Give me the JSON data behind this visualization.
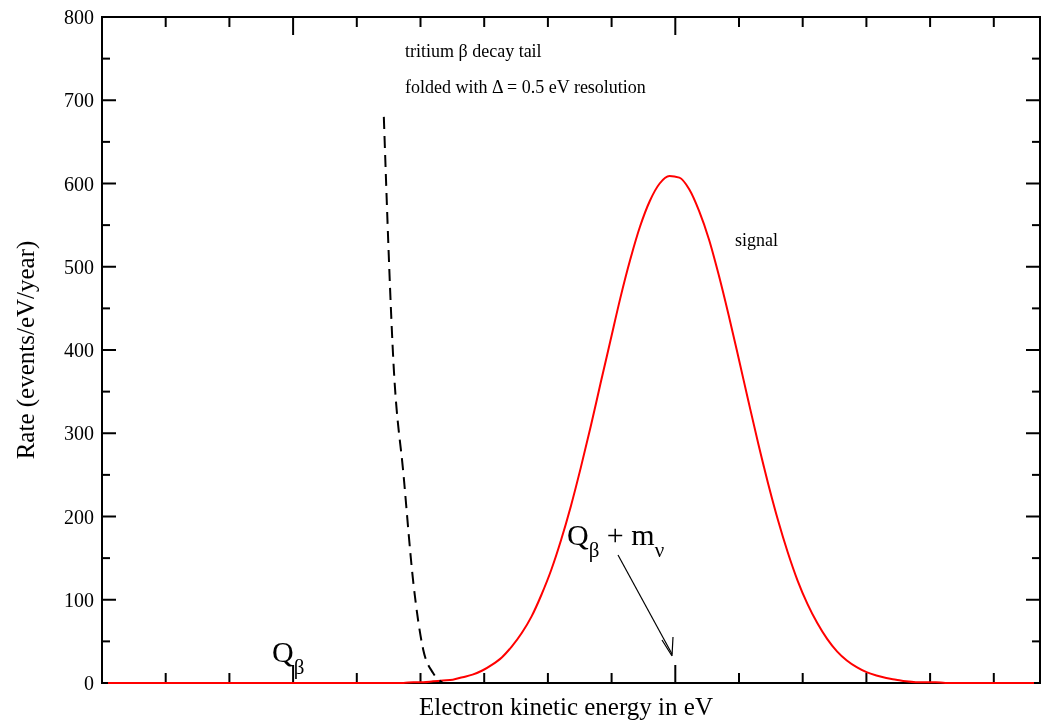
{
  "chart_data": {
    "type": "line",
    "xlabel": "Electron kinetic energy in eV",
    "ylabel": "Rate (events/eV/year)",
    "categories": [
      null,
      null,
      null,
      null,
      null,
      null,
      null,
      null,
      null,
      null,
      null,
      null,
      null,
      null,
      null,
      null,
      null,
      null,
      null,
      null,
      null,
      null,
      null,
      null,
      null,
      null,
      null,
      null,
      null,
      null,
      null,
      null,
      null,
      null,
      null,
      null,
      null,
      null,
      null,
      null,
      null,
      null,
      null,
      null,
      null,
      null,
      null,
      null,
      null,
      null,
      null,
      null,
      null,
      null,
      null,
      null,
      null,
      null,
      null,
      null,
      null,
      null,
      null,
      null,
      null,
      null,
      null,
      null,
      null,
      null,
      null,
      null,
      null,
      null,
      null,
      null,
      null,
      null,
      null,
      null,
      null,
      null,
      null,
      null,
      null,
      null,
      null,
      null,
      null,
      null,
      null,
      null,
      null,
      null,
      null
    ],
    "series": [
      {
        "name": "signal",
        "color": "#ff0000",
        "line_style": "solid",
        "values": [
          0,
          0,
          0,
          0,
          0,
          0,
          0,
          0,
          0,
          0,
          0,
          0,
          0,
          0,
          0,
          0,
          0,
          0,
          0,
          0,
          0,
          0,
          0,
          0,
          0,
          0,
          0,
          0,
          0,
          0,
          0,
          1,
          1,
          2,
          3,
          4,
          7,
          10,
          15,
          22,
          31,
          44,
          60,
          80,
          106,
          136,
          172,
          213,
          259,
          308,
          360,
          411,
          462,
          508,
          548,
          579,
          600,
          609,
          607,
          593,
          567,
          533,
          490,
          442,
          391,
          339,
          288,
          240,
          196,
          157,
          123,
          95,
          72,
          53,
          38,
          27,
          19,
          13,
          9,
          6,
          4,
          2,
          1,
          1,
          1,
          0,
          0,
          0,
          0,
          0,
          0,
          0,
          0,
          0,
          0
        ]
      },
      {
        "color": "#000000",
        "line_style": "dashed",
        "values": [
          null,
          null,
          null,
          null,
          null,
          null,
          null,
          null,
          null,
          null,
          null,
          null,
          null,
          null,
          null,
          null,
          null,
          null,
          null,
          null,
          null,
          null,
          null,
          null,
          null,
          null,
          null,
          null,
          680,
          380,
          250,
          120,
          40,
          12,
          0,
          null,
          null,
          null,
          null,
          null,
          null,
          null,
          null,
          null,
          null,
          null,
          null,
          null,
          null,
          null,
          null,
          null,
          null,
          null,
          null,
          null,
          null,
          null,
          null,
          null,
          null,
          null,
          null,
          null,
          null,
          null,
          null,
          null,
          null,
          null,
          null,
          null,
          null,
          null,
          null,
          null,
          null,
          null,
          null,
          null,
          null,
          null,
          null,
          null,
          null,
          null,
          null,
          null,
          null,
          null,
          null,
          null,
          null,
          null,
          null
        ]
      }
    ],
    "ylim": [
      0,
      800
    ],
    "yticks": [
      0,
      100,
      200,
      300,
      400,
      500,
      600,
      700,
      800
    ],
    "grid": false,
    "legend": false,
    "annotations": [
      "tritium β decay tail",
      "folded with Δ = 0.5 eV resolution",
      "Q$_{β}$",
      "Q$_{β}$ + m$_{ν}$"
    ]
  }
}
